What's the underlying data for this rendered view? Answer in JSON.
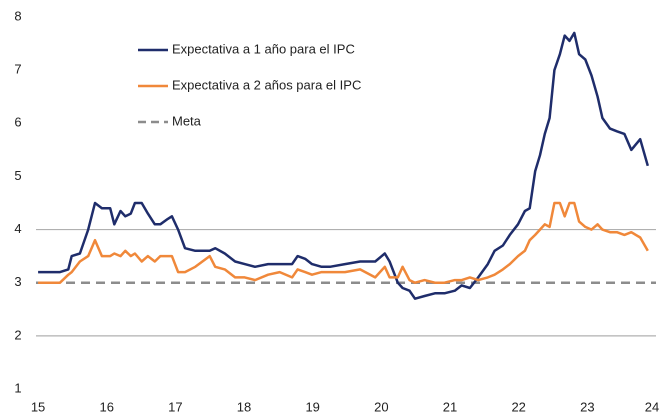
{
  "chart_data": {
    "type": "line",
    "x": [
      15.0,
      15.1,
      15.32,
      15.44,
      15.49,
      15.61,
      15.73,
      15.83,
      15.93,
      16.05,
      16.11,
      16.2,
      16.27,
      16.35,
      16.41,
      16.51,
      16.6,
      16.7,
      16.78,
      16.89,
      16.95,
      17.04,
      17.14,
      17.29,
      17.5,
      17.58,
      17.72,
      17.87,
      18.01,
      18.16,
      18.35,
      18.52,
      18.7,
      18.78,
      18.89,
      18.99,
      19.13,
      19.25,
      19.47,
      19.69,
      19.91,
      20.05,
      20.12,
      20.24,
      20.31,
      20.41,
      20.49,
      20.63,
      20.78,
      20.92,
      21.07,
      21.17,
      21.29,
      21.41,
      21.55,
      21.65,
      21.77,
      21.87,
      21.99,
      22.09,
      22.16,
      22.24,
      22.31,
      22.38,
      22.45,
      22.52,
      22.6,
      22.67,
      22.74,
      22.81,
      22.88,
      22.97,
      23.06,
      23.15,
      23.22,
      23.33,
      23.43,
      23.54,
      23.64,
      23.77,
      23.88
    ],
    "series": [
      {
        "name": "Expectativa a 1 año para el IPC",
        "color": "#1f2d6b",
        "values": [
          3.2,
          3.2,
          3.2,
          3.25,
          3.5,
          3.55,
          4.0,
          4.5,
          4.4,
          4.4,
          4.1,
          4.35,
          4.25,
          4.3,
          4.5,
          4.5,
          4.3,
          4.1,
          4.1,
          4.2,
          4.25,
          4.0,
          3.65,
          3.6,
          3.6,
          3.65,
          3.55,
          3.4,
          3.35,
          3.3,
          3.35,
          3.35,
          3.35,
          3.5,
          3.45,
          3.35,
          3.3,
          3.3,
          3.35,
          3.4,
          3.4,
          3.55,
          3.4,
          3.0,
          2.9,
          2.85,
          2.7,
          2.75,
          2.8,
          2.8,
          2.85,
          2.95,
          2.9,
          3.1,
          3.35,
          3.6,
          3.7,
          3.9,
          4.1,
          4.35,
          4.4,
          5.1,
          5.4,
          5.8,
          6.1,
          7.0,
          7.3,
          7.65,
          7.55,
          7.7,
          7.3,
          7.2,
          6.9,
          6.5,
          6.1,
          5.9,
          5.85,
          5.8,
          5.5,
          5.7,
          5.2
        ]
      },
      {
        "name": "Expectativa a 2 años para el IPC",
        "color": "#f0883a",
        "values": [
          3.0,
          3.0,
          3.0,
          3.15,
          3.2,
          3.4,
          3.5,
          3.8,
          3.5,
          3.5,
          3.55,
          3.5,
          3.6,
          3.5,
          3.55,
          3.4,
          3.5,
          3.4,
          3.5,
          3.5,
          3.5,
          3.2,
          3.2,
          3.3,
          3.5,
          3.3,
          3.25,
          3.1,
          3.1,
          3.05,
          3.15,
          3.2,
          3.1,
          3.25,
          3.2,
          3.15,
          3.2,
          3.2,
          3.2,
          3.25,
          3.1,
          3.3,
          3.1,
          3.1,
          3.3,
          3.05,
          3.0,
          3.05,
          3.0,
          3.0,
          3.05,
          3.05,
          3.1,
          3.05,
          3.1,
          3.15,
          3.25,
          3.35,
          3.5,
          3.6,
          3.8,
          3.9,
          4.0,
          4.1,
          4.05,
          4.5,
          4.5,
          4.25,
          4.5,
          4.5,
          4.15,
          4.05,
          4.0,
          4.1,
          4.0,
          3.95,
          3.95,
          3.9,
          3.95,
          3.85,
          3.6
        ]
      }
    ],
    "reference_lines": [
      {
        "name": "Meta",
        "value": 3,
        "color": "#8c8c8c",
        "dashed": true
      }
    ],
    "xlim": [
      14.97,
      24.0
    ],
    "xticks": [
      15,
      16,
      17,
      18,
      19,
      20,
      21,
      22,
      23,
      24
    ],
    "ylim": [
      1,
      8
    ],
    "yticks": [
      1,
      2,
      3,
      4,
      5,
      6,
      7,
      8
    ],
    "grid_lines": [
      2,
      4
    ],
    "grid_color": "#b0b0b0"
  }
}
